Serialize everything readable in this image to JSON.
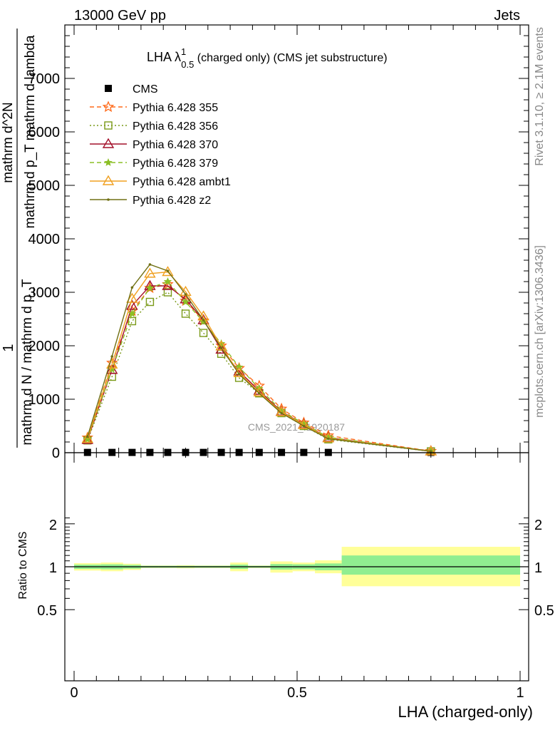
{
  "header": {
    "left": "13000 GeV pp",
    "right": "Jets"
  },
  "side_labels": {
    "rivet": "Rivet 3.1.10, ≥ 2.1M events",
    "mcplots": "mcplots.cern.ch [arXiv:1306.3436]"
  },
  "watermark": "CMS_2021_I1920187",
  "colors": {
    "cms": "#000000",
    "p355": "#ff6a1a",
    "p356": "#7a9a18",
    "p370": "#a4102a",
    "p379": "#8cbf26",
    "ambt1": "#f0a020",
    "z2": "#707015",
    "band_inner": "#90ee90",
    "band_outer": "#ffff99"
  },
  "chart_data": [
    {
      "type": "line",
      "title": "LHA λ",
      "title_super": "1",
      "title_sub": "0.5",
      "title_suffix": " (charged only) (CMS jet substructure)",
      "ylabel_parts": {
        "one": "1",
        "den": "mathrm d N / mathrm d p_T",
        "num_top": "mathrm d^2N",
        "num_bottom": "mathrm d p_T mathrm d lambda"
      },
      "ylim": [
        0,
        8000
      ],
      "yticks": [
        0,
        1000,
        2000,
        3000,
        4000,
        5000,
        6000,
        7000
      ],
      "xlim": [
        -0.02,
        1.0
      ],
      "x": [
        0.03,
        0.085,
        0.13,
        0.17,
        0.21,
        0.25,
        0.29,
        0.33,
        0.37,
        0.415,
        0.465,
        0.515,
        0.57,
        0.8
      ],
      "series": [
        {
          "name": "CMS",
          "marker": "square",
          "values": [
            5,
            5,
            5,
            5,
            5,
            5,
            5,
            5,
            5,
            5,
            5,
            5,
            5,
            5
          ]
        },
        {
          "name": "Pythia 6.428 355",
          "marker": "star",
          "dash": "dashed",
          "values": [
            280,
            1680,
            2650,
            3080,
            3150,
            2840,
            2470,
            2000,
            1580,
            1250,
            820,
            560,
            320,
            30
          ]
        },
        {
          "name": "Pythia 6.428 356",
          "marker": "open-square",
          "dash": "dotted",
          "values": [
            230,
            1420,
            2460,
            2820,
            3000,
            2600,
            2240,
            1850,
            1400,
            1110,
            740,
            500,
            250,
            25
          ]
        },
        {
          "name": "Pythia 6.428 370",
          "marker": "open-triangle",
          "dash": "solid",
          "values": [
            240,
            1550,
            2750,
            3120,
            3120,
            2870,
            2480,
            1930,
            1520,
            1160,
            770,
            530,
            280,
            28
          ]
        },
        {
          "name": "Pythia 6.428 379",
          "marker": "small-star",
          "dash": "dashed",
          "values": [
            250,
            1560,
            2600,
            3080,
            3200,
            2820,
            2450,
            2040,
            1600,
            1200,
            790,
            540,
            290,
            28
          ]
        },
        {
          "name": "Pythia 6.428 ambt1",
          "marker": "open-triangle",
          "dash": "solid",
          "values": [
            260,
            1650,
            2880,
            3350,
            3380,
            3010,
            2550,
            1990,
            1490,
            1130,
            760,
            520,
            270,
            26
          ]
        },
        {
          "name": "Pythia 6.428 z2",
          "marker": "dot",
          "dash": "solid",
          "values": [
            300,
            1800,
            3090,
            3520,
            3400,
            2960,
            2480,
            1960,
            1470,
            1110,
            740,
            500,
            260,
            25
          ]
        }
      ]
    },
    {
      "type": "area",
      "ylabel": "Ratio to CMS",
      "xlabel": "LHA (charged-only)",
      "ylog": true,
      "ylim": [
        0.4,
        2.4
      ],
      "yticks": [
        0.5,
        1,
        2
      ],
      "ytick_labels": [
        "0.5",
        "1",
        "2"
      ],
      "xticks": [
        0,
        0.5,
        1
      ],
      "xtick_labels": [
        "0",
        "0.5",
        "1"
      ],
      "bins": [
        0.0,
        0.06,
        0.11,
        0.15,
        0.19,
        0.23,
        0.27,
        0.31,
        0.35,
        0.39,
        0.44,
        0.49,
        0.54,
        0.6,
        1.0
      ],
      "inner_band": [
        [
          0.965,
          1.035
        ],
        [
          0.96,
          1.04
        ],
        [
          0.97,
          1.03
        ],
        [
          0.985,
          1.015
        ],
        [
          0.985,
          1.015
        ],
        [
          0.985,
          1.015
        ],
        [
          0.985,
          1.015
        ],
        [
          0.985,
          1.015
        ],
        [
          0.965,
          1.035
        ],
        [
          0.985,
          1.015
        ],
        [
          0.955,
          1.045
        ],
        [
          0.96,
          1.04
        ],
        [
          0.945,
          1.055
        ],
        [
          0.88,
          1.2
        ]
      ],
      "outer_band": [
        [
          0.94,
          1.06
        ],
        [
          0.93,
          1.07
        ],
        [
          0.95,
          1.05
        ],
        [
          0.98,
          1.02
        ],
        [
          0.98,
          1.02
        ],
        [
          0.975,
          1.025
        ],
        [
          0.98,
          1.02
        ],
        [
          0.98,
          1.02
        ],
        [
          0.93,
          1.07
        ],
        [
          0.98,
          1.02
        ],
        [
          0.91,
          1.09
        ],
        [
          0.93,
          1.07
        ],
        [
          0.9,
          1.11
        ],
        [
          0.73,
          1.38
        ]
      ]
    }
  ]
}
